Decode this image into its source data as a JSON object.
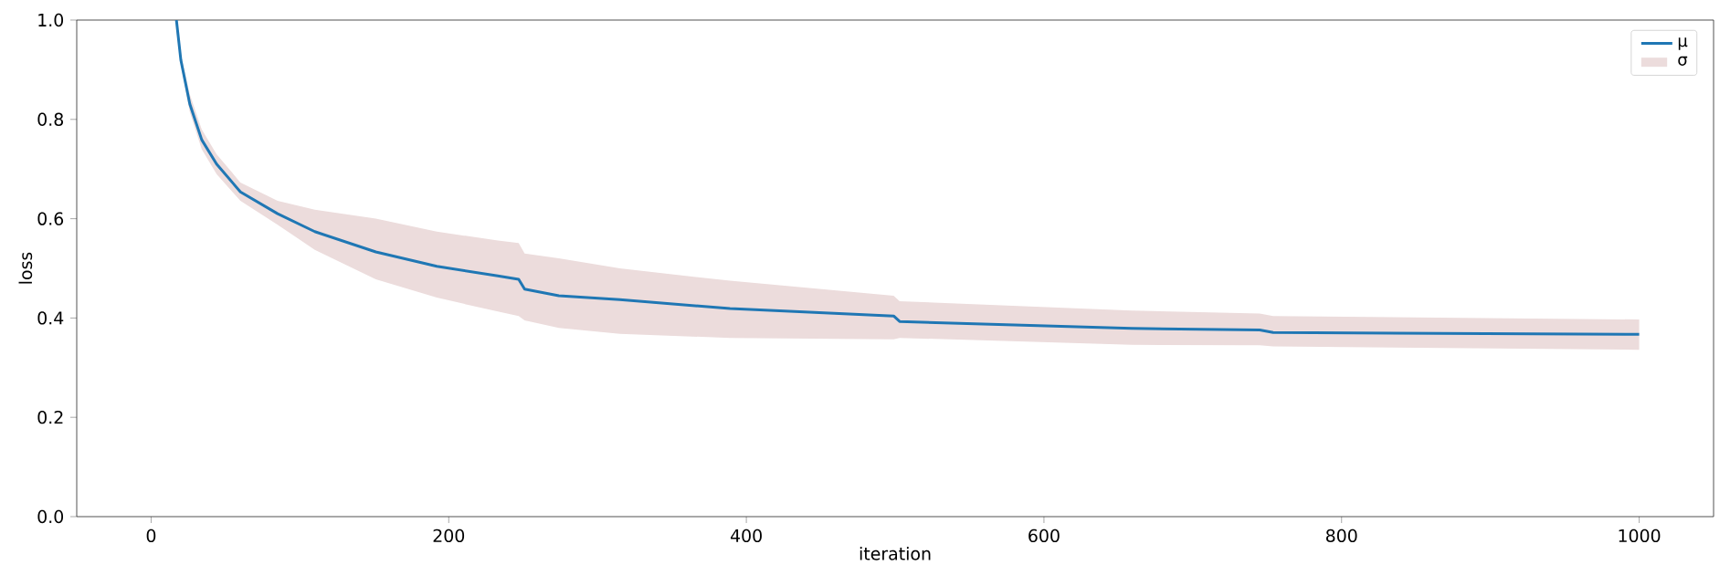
{
  "chart_data": {
    "type": "line",
    "xlabel": "iteration",
    "ylabel": "loss",
    "xlim": [
      -50,
      1050
    ],
    "ylim": [
      0,
      1
    ],
    "xticks": [
      0,
      200,
      400,
      600,
      800,
      1000
    ],
    "yticks": [
      {
        "value": 0,
        "label": "0.0"
      },
      {
        "value": 0.2,
        "label": "0.2"
      },
      {
        "value": 0.4,
        "label": "0.4"
      },
      {
        "value": 0.6,
        "label": "0.6"
      },
      {
        "value": 0.8,
        "label": "0.8"
      },
      {
        "value": 1,
        "label": "1.0"
      }
    ],
    "legend": "top right",
    "annotations": [
      "σ"
    ],
    "series": [
      {
        "name": "μ",
        "color": "#1f77b4",
        "line_style": "solid",
        "x": [
          17,
          20,
          26,
          34,
          44,
          60,
          85,
          110,
          151,
          192,
          233,
          247,
          251,
          274,
          315,
          389,
          499,
          503,
          659,
          745,
          754,
          1000
        ],
        "values": [
          1.0,
          0.919,
          0.831,
          0.759,
          0.71,
          0.654,
          0.61,
          0.574,
          0.533,
          0.504,
          0.485,
          0.478,
          0.458,
          0.445,
          0.437,
          0.419,
          0.404,
          0.393,
          0.379,
          0.376,
          0.371,
          0.367
        ],
        "lower": [
          0.98,
          0.91,
          0.815,
          0.74,
          0.69,
          0.636,
          0.588,
          0.537,
          0.478,
          0.441,
          0.413,
          0.404,
          0.395,
          0.38,
          0.368,
          0.36,
          0.357,
          0.36,
          0.346,
          0.345,
          0.343,
          0.336
        ],
        "upper": [
          1.0,
          0.93,
          0.85,
          0.78,
          0.73,
          0.673,
          0.636,
          0.618,
          0.6,
          0.574,
          0.556,
          0.551,
          0.53,
          0.52,
          0.5,
          0.475,
          0.445,
          0.434,
          0.415,
          0.409,
          0.404,
          0.397
        ]
      }
    ]
  }
}
